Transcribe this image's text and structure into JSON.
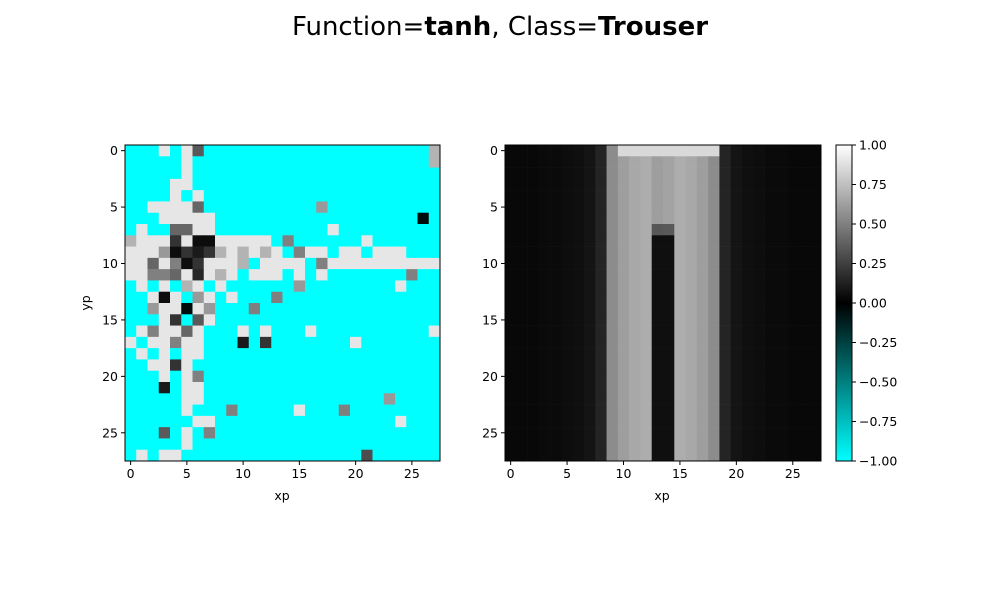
{
  "chart_data": [
    {
      "type": "heatmap",
      "title_prefix_1": "Function=",
      "title_bold_1": "tanh",
      "title_sep": ", Class=",
      "title_bold_2": "Trouser",
      "panel": "left",
      "xlabel": "xp",
      "ylabel": "yp",
      "xlim": [
        -0.5,
        27.5
      ],
      "ylim": [
        27.5,
        -0.5
      ],
      "xticks": [
        0,
        5,
        10,
        15,
        20,
        25
      ],
      "yticks": [
        0,
        5,
        10,
        15,
        20,
        25
      ],
      "xtick_labels": [
        "0",
        "5",
        "10",
        "15",
        "20",
        "25"
      ],
      "ytick_labels": [
        "0",
        "5",
        "10",
        "15",
        "20",
        "25"
      ],
      "sparse_cells": [
        [
          0,
          3,
          0.9
        ],
        [
          0,
          5,
          0.9
        ],
        [
          0,
          6,
          0.35
        ],
        [
          0,
          27,
          0.7
        ],
        [
          1,
          5,
          0.9
        ],
        [
          1,
          27,
          0.7
        ],
        [
          2,
          5,
          0.9
        ],
        [
          3,
          4,
          0.9
        ],
        [
          3,
          5,
          0.9
        ],
        [
          4,
          4,
          0.9
        ],
        [
          4,
          6,
          0.9
        ],
        [
          5,
          2,
          0.9
        ],
        [
          5,
          3,
          0.9
        ],
        [
          5,
          4,
          0.9
        ],
        [
          5,
          5,
          0.9
        ],
        [
          5,
          6,
          0.4
        ],
        [
          5,
          17,
          0.6
        ],
        [
          6,
          3,
          0.9
        ],
        [
          6,
          4,
          0.9
        ],
        [
          6,
          5,
          0.9
        ],
        [
          6,
          6,
          0.9
        ],
        [
          6,
          7,
          0.9
        ],
        [
          6,
          26,
          -0.05
        ],
        [
          7,
          1,
          0.9
        ],
        [
          7,
          4,
          0.4
        ],
        [
          7,
          5,
          0.4
        ],
        [
          7,
          6,
          0.9
        ],
        [
          7,
          7,
          0.9
        ],
        [
          7,
          18,
          0.9
        ],
        [
          8,
          0,
          0.7
        ],
        [
          8,
          1,
          0.9
        ],
        [
          8,
          2,
          0.9
        ],
        [
          8,
          3,
          0.9
        ],
        [
          8,
          4,
          0.2
        ],
        [
          8,
          5,
          0.9
        ],
        [
          8,
          6,
          0.05
        ],
        [
          8,
          7,
          0.05
        ],
        [
          8,
          8,
          0.9
        ],
        [
          8,
          9,
          0.9
        ],
        [
          8,
          10,
          0.9
        ],
        [
          8,
          11,
          0.9
        ],
        [
          8,
          12,
          0.9
        ],
        [
          8,
          14,
          0.5
        ],
        [
          8,
          21,
          0.9
        ],
        [
          9,
          0,
          0.9
        ],
        [
          9,
          1,
          0.9
        ],
        [
          9,
          2,
          0.9
        ],
        [
          9,
          3,
          0.6
        ],
        [
          9,
          4,
          0.05
        ],
        [
          9,
          5,
          0.2
        ],
        [
          9,
          6,
          0.1
        ],
        [
          9,
          7,
          0.2
        ],
        [
          9,
          8,
          0.7
        ],
        [
          9,
          9,
          0.9
        ],
        [
          9,
          10,
          0.7
        ],
        [
          9,
          11,
          0.9
        ],
        [
          9,
          12,
          0.7
        ],
        [
          9,
          13,
          0.9
        ],
        [
          9,
          15,
          0.5
        ],
        [
          9,
          16,
          0.9
        ],
        [
          9,
          17,
          0.9
        ],
        [
          9,
          19,
          0.9
        ],
        [
          9,
          20,
          0.9
        ],
        [
          9,
          22,
          0.9
        ],
        [
          9,
          23,
          0.9
        ],
        [
          9,
          24,
          0.9
        ],
        [
          10,
          0,
          0.9
        ],
        [
          10,
          1,
          0.9
        ],
        [
          10,
          2,
          0.4
        ],
        [
          10,
          3,
          0.9
        ],
        [
          10,
          4,
          0.5
        ],
        [
          10,
          5,
          0.05
        ],
        [
          10,
          6,
          0.2
        ],
        [
          10,
          7,
          0.9
        ],
        [
          10,
          8,
          0.9
        ],
        [
          10,
          9,
          0.9
        ],
        [
          10,
          10,
          0.7
        ],
        [
          10,
          12,
          0.9
        ],
        [
          10,
          13,
          0.9
        ],
        [
          10,
          14,
          0.9
        ],
        [
          10,
          15,
          0.9
        ],
        [
          10,
          17,
          0.5
        ],
        [
          10,
          18,
          0.9
        ],
        [
          10,
          19,
          0.9
        ],
        [
          10,
          20,
          0.9
        ],
        [
          10,
          21,
          0.9
        ],
        [
          10,
          22,
          0.9
        ],
        [
          10,
          23,
          0.9
        ],
        [
          10,
          24,
          0.9
        ],
        [
          10,
          25,
          0.9
        ],
        [
          10,
          26,
          0.9
        ],
        [
          10,
          27,
          0.9
        ],
        [
          11,
          0,
          0.9
        ],
        [
          11,
          1,
          0.9
        ],
        [
          11,
          2,
          0.5
        ],
        [
          11,
          3,
          0.5
        ],
        [
          11,
          4,
          0.4
        ],
        [
          11,
          5,
          0.9
        ],
        [
          11,
          6,
          0.15
        ],
        [
          11,
          7,
          0.9
        ],
        [
          11,
          8,
          0.7
        ],
        [
          11,
          9,
          0.9
        ],
        [
          11,
          11,
          0.9
        ],
        [
          11,
          12,
          0.9
        ],
        [
          11,
          13,
          0.9
        ],
        [
          11,
          15,
          0.9
        ],
        [
          11,
          17,
          0.9
        ],
        [
          11,
          25,
          0.5
        ],
        [
          12,
          1,
          0.9
        ],
        [
          12,
          3,
          0.9
        ],
        [
          12,
          5,
          0.7
        ],
        [
          12,
          6,
          0.9
        ],
        [
          12,
          8,
          0.9
        ],
        [
          12,
          15,
          0.6
        ],
        [
          12,
          24,
          0.9
        ],
        [
          13,
          2,
          0.9
        ],
        [
          13,
          3,
          0.05
        ],
        [
          13,
          4,
          0.9
        ],
        [
          13,
          6,
          0.6
        ],
        [
          13,
          7,
          0.9
        ],
        [
          13,
          9,
          0.9
        ],
        [
          13,
          13,
          0.5
        ],
        [
          14,
          2,
          0.6
        ],
        [
          14,
          3,
          0.9
        ],
        [
          14,
          4,
          0.9
        ],
        [
          14,
          5,
          -0.05
        ],
        [
          14,
          6,
          0.9
        ],
        [
          14,
          7,
          0.6
        ],
        [
          14,
          11,
          0.5
        ],
        [
          15,
          3,
          0.9
        ],
        [
          15,
          4,
          0.2
        ],
        [
          15,
          6,
          0.35
        ],
        [
          15,
          7,
          0.9
        ],
        [
          16,
          1,
          0.9
        ],
        [
          16,
          2,
          0.5
        ],
        [
          16,
          3,
          0.9
        ],
        [
          16,
          4,
          0.9
        ],
        [
          16,
          5,
          0.4
        ],
        [
          16,
          6,
          0.9
        ],
        [
          16,
          10,
          0.9
        ],
        [
          16,
          12,
          0.9
        ],
        [
          16,
          16,
          0.9
        ],
        [
          16,
          27,
          0.9
        ],
        [
          17,
          0,
          0.9
        ],
        [
          17,
          2,
          0.9
        ],
        [
          17,
          3,
          0.9
        ],
        [
          17,
          4,
          0.5
        ],
        [
          17,
          5,
          0.9
        ],
        [
          17,
          6,
          0.9
        ],
        [
          17,
          10,
          0.1
        ],
        [
          17,
          12,
          0.2
        ],
        [
          17,
          20,
          0.9
        ],
        [
          18,
          1,
          0.9
        ],
        [
          18,
          3,
          0.9
        ],
        [
          18,
          5,
          0.9
        ],
        [
          18,
          6,
          0.9
        ],
        [
          19,
          2,
          0.9
        ],
        [
          19,
          3,
          0.9
        ],
        [
          19,
          4,
          0.2
        ],
        [
          19,
          5,
          0.9
        ],
        [
          20,
          3,
          0.9
        ],
        [
          20,
          5,
          0.9
        ],
        [
          20,
          6,
          0.5
        ],
        [
          21,
          3,
          0.1
        ],
        [
          21,
          5,
          0.9
        ],
        [
          21,
          6,
          0.9
        ],
        [
          22,
          5,
          0.9
        ],
        [
          22,
          6,
          0.9
        ],
        [
          22,
          23,
          0.6
        ],
        [
          23,
          5,
          0.9
        ],
        [
          23,
          9,
          0.5
        ],
        [
          23,
          15,
          0.9
        ],
        [
          23,
          19,
          0.5
        ],
        [
          24,
          6,
          0.9
        ],
        [
          24,
          7,
          0.9
        ],
        [
          24,
          24,
          0.9
        ],
        [
          25,
          3,
          0.35
        ],
        [
          25,
          5,
          0.9
        ],
        [
          25,
          7,
          0.5
        ],
        [
          26,
          5,
          0.9
        ],
        [
          27,
          1,
          0.9
        ],
        [
          27,
          3,
          0.9
        ],
        [
          27,
          4,
          0.9
        ],
        [
          27,
          21,
          0.3
        ]
      ],
      "background_value": -1.0,
      "vmin": -1.0,
      "vmax": 1.0
    },
    {
      "type": "heatmap",
      "panel": "right",
      "xlabel": "xp",
      "xlim": [
        -0.5,
        27.5
      ],
      "ylim": [
        27.5,
        -0.5
      ],
      "xticks": [
        0,
        5,
        10,
        15,
        20,
        25
      ],
      "yticks": [
        0,
        5,
        10,
        15,
        20,
        25
      ],
      "xtick_labels": [
        "0",
        "5",
        "10",
        "15",
        "20",
        "25"
      ],
      "ytick_labels": [
        "0",
        "5",
        "10",
        "15",
        "20",
        "25"
      ],
      "column_profile": [
        0.03,
        0.03,
        0.03,
        0.04,
        0.04,
        0.05,
        0.06,
        0.08,
        0.14,
        0.55,
        0.62,
        0.66,
        0.68,
        0.62,
        0.64,
        0.68,
        0.66,
        0.62,
        0.55,
        0.14,
        0.08,
        0.06,
        0.05,
        0.04,
        0.04,
        0.03,
        0.03,
        0.03
      ],
      "top_bar_value": 0.85,
      "gap_start_row": 8,
      "gap_columns": [
        13,
        14
      ],
      "gap_value": 0.06,
      "vmin": -1.0,
      "vmax": 1.0
    }
  ],
  "colorbar": {
    "ticks": [
      1.0,
      0.75,
      0.5,
      0.25,
      0.0,
      -0.25,
      -0.5,
      -0.75,
      -1.0
    ],
    "tick_labels": [
      "1.00",
      "0.75",
      "0.50",
      "0.25",
      "0.00",
      "−0.25",
      "−0.50",
      "−0.75",
      "−1.00"
    ],
    "colormap_stops": [
      {
        "value": -1.0,
        "color": "#00ffff"
      },
      {
        "value": 0.0,
        "color": "#000000"
      },
      {
        "value": 1.0,
        "color": "#ffffff"
      }
    ]
  }
}
